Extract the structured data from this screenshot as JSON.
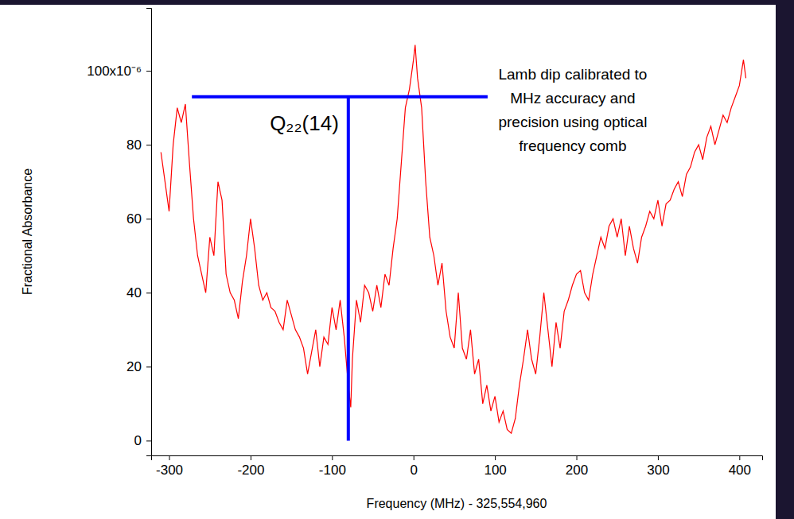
{
  "chart_data": {
    "type": "line",
    "x_label": "Frequency (MHz) - 325,554,960",
    "y_label": "Fractional Absorbance",
    "color": "#ff0000",
    "grid": false,
    "xlim": [
      -322,
      428
    ],
    "ylim": [
      -4,
      117
    ],
    "xticks": [
      -300,
      -200,
      -100,
      0,
      100,
      200,
      300,
      400
    ],
    "yticks": [
      0,
      20,
      40,
      60,
      80,
      {
        "value": 100,
        "label": "100x10⁻⁶"
      }
    ],
    "x": [
      -310,
      -305,
      -300,
      -295,
      -290,
      -285,
      -280,
      -275,
      -270,
      -265,
      -260,
      -255,
      -250,
      -245,
      -240,
      -235,
      -230,
      -225,
      -220,
      -215,
      -210,
      -205,
      -200,
      -195,
      -190,
      -185,
      -180,
      -175,
      -170,
      -165,
      -160,
      -155,
      -150,
      -145,
      -140,
      -135,
      -130,
      -125,
      -120,
      -115,
      -110,
      -105,
      -100,
      -95,
      -90,
      -85,
      -80,
      -77,
      -75,
      -70,
      -65,
      -60,
      -55,
      -50,
      -45,
      -40,
      -35,
      -30,
      -25,
      -20,
      -15,
      -10,
      -5,
      0,
      2,
      5,
      10,
      15,
      20,
      25,
      30,
      35,
      40,
      45,
      50,
      55,
      60,
      65,
      70,
      75,
      80,
      85,
      90,
      95,
      100,
      105,
      110,
      115,
      120,
      125,
      130,
      135,
      140,
      145,
      150,
      155,
      160,
      165,
      170,
      175,
      180,
      185,
      190,
      195,
      200,
      205,
      210,
      215,
      220,
      225,
      230,
      235,
      240,
      245,
      250,
      255,
      260,
      265,
      270,
      275,
      280,
      285,
      290,
      295,
      300,
      305,
      310,
      315,
      320,
      325,
      330,
      335,
      340,
      345,
      350,
      355,
      360,
      365,
      370,
      375,
      380,
      385,
      390,
      395,
      400,
      405,
      408
    ],
    "values": [
      78,
      70,
      62,
      80,
      90,
      86,
      91,
      75,
      60,
      50,
      45,
      40,
      55,
      50,
      70,
      65,
      45,
      40,
      38,
      33,
      43,
      50,
      60,
      52,
      42,
      38,
      40,
      36,
      35,
      32,
      30,
      38,
      34,
      30,
      28,
      25,
      18,
      24,
      30,
      20,
      28,
      26,
      36,
      30,
      38,
      28,
      15,
      9,
      22,
      38,
      32,
      42,
      40,
      35,
      42,
      36,
      45,
      42,
      52,
      60,
      75,
      90,
      95,
      103,
      107,
      98,
      90,
      70,
      55,
      50,
      42,
      48,
      35,
      28,
      25,
      40,
      25,
      22,
      30,
      18,
      22,
      10,
      15,
      8,
      12,
      5,
      8,
      3,
      2,
      6,
      15,
      22,
      30,
      22,
      18,
      28,
      40,
      30,
      20,
      32,
      25,
      35,
      38,
      42,
      45,
      46,
      40,
      38,
      45,
      50,
      55,
      52,
      58,
      60,
      55,
      60,
      50,
      58,
      52,
      48,
      55,
      58,
      62,
      60,
      65,
      58,
      64,
      65,
      68,
      70,
      66,
      72,
      74,
      78,
      80,
      76,
      82,
      85,
      80,
      84,
      88,
      86,
      90,
      93,
      96,
      103,
      98
    ],
    "annotations": [
      {
        "text": "Q₂₂(14)",
        "x": -80,
        "x_range": [
          -272,
          91
        ],
        "y_range": [
          0,
          93
        ],
        "color": "#0000ff"
      },
      {
        "text": [
          "Lamb dip calibrated to",
          "MHz accuracy and",
          "precision using optical",
          "frequency comb"
        ]
      }
    ]
  }
}
